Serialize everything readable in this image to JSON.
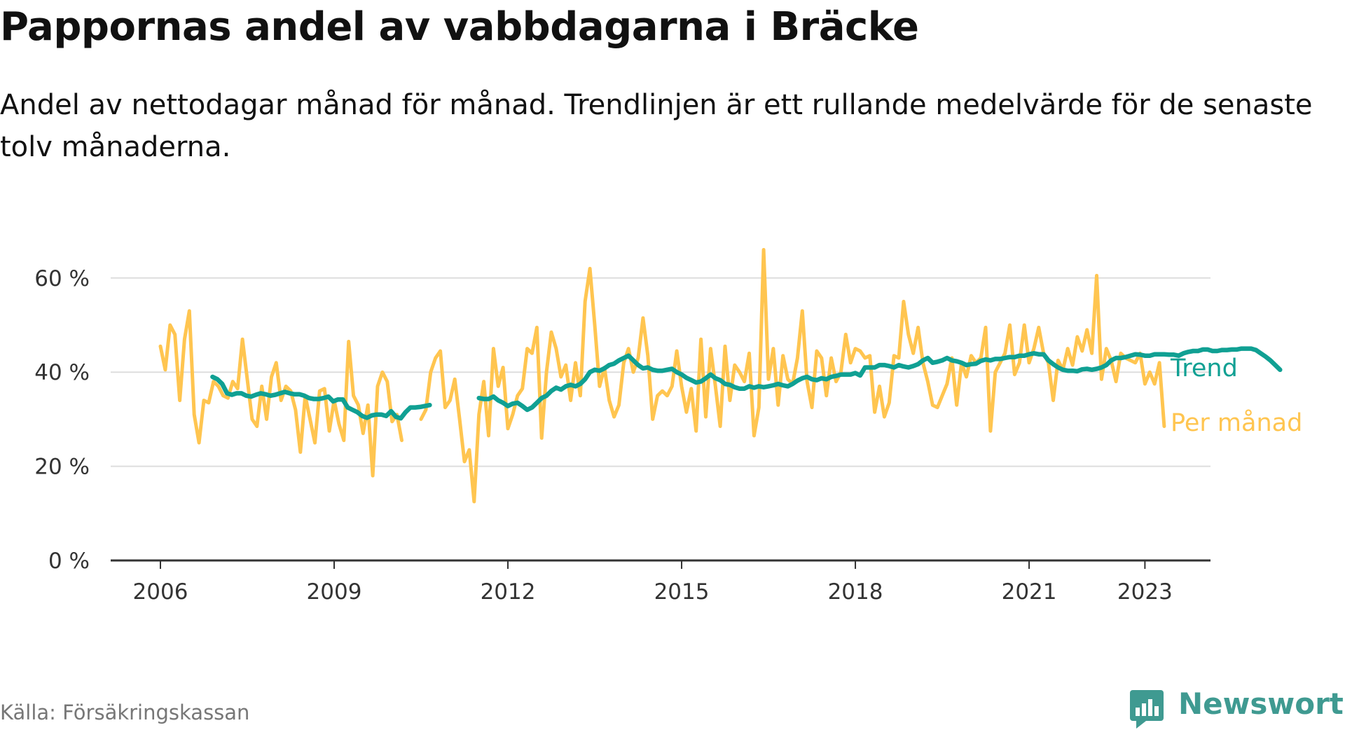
{
  "chart_data": {
    "type": "line",
    "title": "Pappornas andel av vabbdagarna i Bräcke",
    "subtitle": "Andel av nettodagar månad för månad. Trendlinjen är ett rullande medelvärde för de senaste tolv månaderna.",
    "source": "Källa: Försäkringskassan",
    "brand": "Newsworthy",
    "ylim": [
      0,
      65
    ],
    "xlim": [
      2005.2,
      2024.2
    ],
    "y_ticks": [
      0,
      20,
      40,
      60
    ],
    "y_tick_labels": [
      "0 %",
      "20 %",
      "40 %",
      "60 %"
    ],
    "x_ticks": [
      2006,
      2009,
      2012,
      2015,
      2018,
      2021,
      2023
    ],
    "x_tick_labels": [
      "2006",
      "2009",
      "2012",
      "2015",
      "2018",
      "2021",
      "2023"
    ],
    "grid": true,
    "series": [
      {
        "name": "Per månad",
        "color": "#ffc550",
        "segments": [
          {
            "start": 2006.0,
            "values": [
              45.5,
              40.5,
              50,
              48,
              34,
              47,
              53,
              31,
              25,
              34,
              33.5,
              38,
              37,
              35,
              34.5,
              38,
              36.5,
              47,
              38.5,
              30,
              28.5,
              37,
              30,
              39,
              42,
              34,
              37,
              36,
              32,
              23,
              35,
              30,
              25,
              36,
              36.5,
              27.5,
              34,
              29,
              25.5,
              46.5,
              35,
              33,
              27,
              33,
              18,
              37,
              40,
              38,
              29.5,
              31,
              25.5
            ]
          },
          {
            "start": 2010.5,
            "values": [
              30,
              32,
              40,
              43,
              44.5,
              32.5,
              34,
              38.5,
              30,
              21,
              23.5,
              12.5,
              31,
              38,
              26.5,
              45,
              37,
              41,
              28,
              31,
              35,
              36.5,
              45,
              44,
              49.5,
              26,
              40,
              48.5,
              45,
              39,
              41.5,
              34,
              42,
              35,
              55,
              62,
              50,
              37,
              41,
              34,
              30.5,
              33,
              42,
              45,
              40,
              43,
              51.5,
              43.5,
              30,
              35,
              36,
              35,
              37,
              44.5,
              37,
              31.5,
              36.5,
              27.5,
              47,
              30.5,
              45,
              37,
              28.5,
              45.5,
              34,
              41.5,
              40,
              38,
              44,
              26.5,
              32.5,
              66,
              38.5,
              45,
              33,
              43.5,
              38.5,
              37.5,
              43,
              53,
              38,
              32.5,
              44.5,
              43,
              35,
              43,
              38,
              40,
              48,
              42,
              45,
              44.5,
              43,
              43.5,
              31.5,
              37,
              30.5,
              33.5,
              43.5,
              43,
              55,
              48,
              44,
              49.5,
              42,
              38,
              33,
              32.5,
              35,
              37.5,
              43,
              33,
              42,
              39,
              43.5,
              42,
              43,
              49.5,
              27.5,
              40,
              42,
              44,
              50,
              39.5,
              42,
              50,
              42,
              45,
              49.5,
              44,
              42,
              34,
              42.5,
              40.5,
              45,
              41.5,
              47.5,
              44.5,
              49,
              44,
              60.5,
              38.5,
              45,
              42.5,
              38,
              44,
              43,
              42.5,
              42,
              44,
              37.5,
              40,
              37.5,
              42,
              28.5
            ]
          }
        ]
      },
      {
        "name": "Trend",
        "color": "#10a093",
        "segments": [
          {
            "start": 2006.9,
            "values": [
              39,
              38.5,
              37.5,
              35.5,
              35.2,
              35.5,
              35.5,
              35.0,
              34.8,
              35.2,
              35.5,
              35.3,
              35.0,
              35.2,
              35.5,
              35.8,
              35.5,
              35.3,
              35.3,
              35.0,
              34.5,
              34.3,
              34.3,
              34.5,
              34.8,
              33.8,
              34.2,
              34.2,
              32.5,
              32.0,
              31.5,
              30.7,
              30.3,
              30.8,
              31.0,
              31.0,
              30.7,
              31.7,
              30.5,
              30.2,
              31.5,
              32.5,
              32.5,
              32.6,
              32.8,
              33.0
            ]
          },
          {
            "start": 2011.5,
            "values": [
              34.5,
              34.3,
              34.3,
              34.8,
              34.0,
              33.5,
              32.8,
              33.3,
              33.5,
              32.8,
              32.0,
              32.5,
              33.5,
              34.5,
              35.0,
              36.0,
              36.7,
              36.3,
              37.0,
              37.3,
              37.0,
              37.5,
              38.5,
              40.0,
              40.5,
              40.3,
              40.8,
              41.5,
              41.8,
              42.5,
              43.0,
              43.5,
              42.5,
              41.5,
              40.8,
              41.0,
              40.5,
              40.3,
              40.3,
              40.5,
              40.7,
              40.0,
              39.5,
              38.8,
              38.3,
              37.8,
              38.0,
              38.7,
              39.5,
              38.7,
              38.3,
              37.5,
              37.3,
              36.8,
              36.5,
              36.5,
              37.0,
              36.7,
              37.0,
              36.8,
              37.0,
              37.2,
              37.5,
              37.2,
              37.0,
              37.5,
              38.2,
              38.7,
              39.0,
              38.5,
              38.3,
              38.7,
              38.5,
              39.0,
              39.2,
              39.5,
              39.5,
              39.5,
              39.8,
              39.3,
              41.0,
              41.0,
              41.0,
              41.5,
              41.5,
              41.3,
              41.0,
              41.5,
              41.2,
              41.0,
              41.3,
              41.7,
              42.5,
              43.0,
              42.0,
              42.2,
              42.5,
              43.0,
              42.5,
              42.3,
              42.0,
              41.5,
              41.7,
              41.8,
              42.4,
              42.7,
              42.5,
              42.8,
              42.8,
              43.0,
              43.2,
              43.2,
              43.5,
              43.5,
              43.8,
              44.0,
              43.8,
              43.8,
              42.5,
              41.7,
              41.0,
              40.5,
              40.3,
              40.3,
              40.2,
              40.6,
              40.7,
              40.5,
              40.7,
              41.0,
              41.5,
              42.5,
              43.0,
              43.0,
              43.2,
              43.5,
              43.8,
              43.7,
              43.5,
              43.5,
              43.8,
              43.8,
              43.8,
              43.7,
              43.7,
              43.5,
              44.0,
              44.3,
              44.5,
              44.5,
              44.8,
              44.8,
              44.5,
              44.5,
              44.7,
              44.7,
              44.8,
              44.8,
              45.0,
              45.0,
              45.0,
              44.7,
              44.0,
              43.3,
              42.5,
              41.5,
              40.5
            ]
          }
        ]
      }
    ],
    "annotations": {
      "trend_label": "Trend",
      "monthly_label": "Per månad"
    }
  }
}
